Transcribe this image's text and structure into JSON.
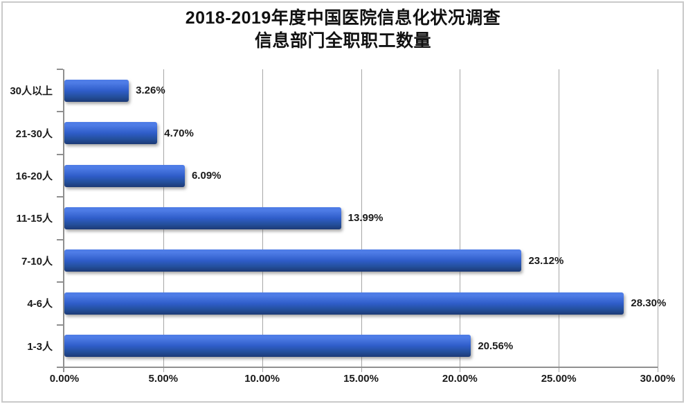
{
  "chart_data": {
    "type": "bar",
    "orientation": "horizontal",
    "title": "2018-2019年度中国医院信息化状况调查",
    "subtitle": "信息部门全职职工数量",
    "categories": [
      "30人以上",
      "21-30人",
      "16-20人",
      "11-15人",
      "7-10人",
      "4-6人",
      "1-3人"
    ],
    "values": [
      3.26,
      4.7,
      6.09,
      13.99,
      23.12,
      28.3,
      20.56
    ],
    "value_labels": [
      "3.26%",
      "4.70%",
      "6.09%",
      "13.99%",
      "23.12%",
      "28.30%",
      "20.56%"
    ],
    "xlim": [
      0,
      30
    ],
    "x_tick_values": [
      0,
      5,
      10,
      15,
      20,
      25,
      30
    ],
    "x_tick_labels": [
      "0.00%",
      "5.00%",
      "10.00%",
      "15.00%",
      "20.00%",
      "25.00%",
      "30.00%"
    ],
    "grid": true,
    "legend": false,
    "colors": {
      "bar_top": "#4e7ce6",
      "bar_mid": "#2f5dc9",
      "bar_bottom": "#1d3a76",
      "grid_line": "#a6a6a6",
      "axis_line": "#8f8f8f",
      "text": "#1a1a1a",
      "frame_border": "#c9c9c9"
    }
  }
}
